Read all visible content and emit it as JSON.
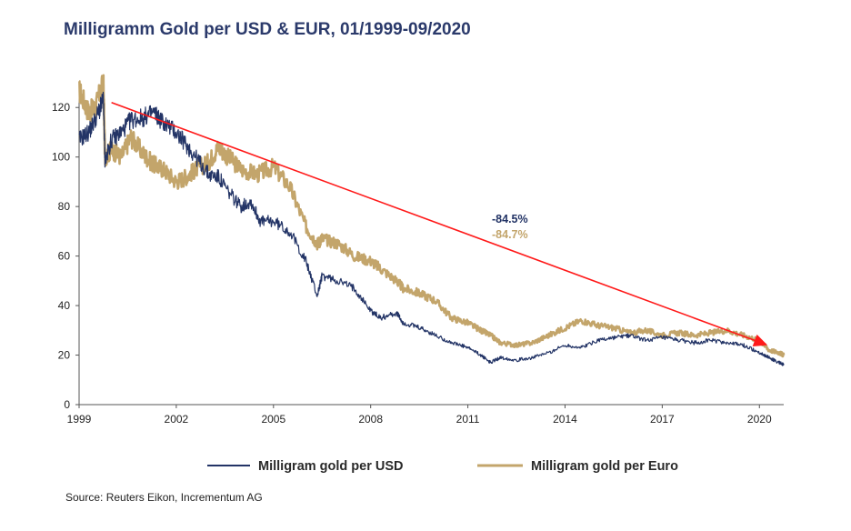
{
  "title": "Milligramm Gold per USD & EUR, 01/1999-09/2020",
  "source": "Source: Reuters Eikon, Incrementum AG",
  "colors": {
    "usd": "#233466",
    "eur": "#c3a56b",
    "trend": "#ff1a1a",
    "axis": "#555555"
  },
  "chart_data": {
    "type": "line",
    "title": "Milligramm Gold per USD & EUR, 01/1999-09/2020",
    "xlabel": "",
    "ylabel": "",
    "xlim": [
      1999.0,
      2020.75
    ],
    "ylim": [
      0,
      130
    ],
    "x_ticks": [
      "1999",
      "2002",
      "2005",
      "2008",
      "2011",
      "2014",
      "2017",
      "2020"
    ],
    "y_ticks": [
      "0",
      "20",
      "40",
      "60",
      "80",
      "100",
      "120"
    ],
    "grid": false,
    "legend": "bottom",
    "series": [
      {
        "name": "Milligram gold per USD",
        "color": "#233466",
        "x": [
          1999.0,
          1999.3,
          1999.6,
          1999.75,
          1999.8,
          2000.0,
          2000.3,
          2000.6,
          2001.0,
          2001.3,
          2001.6,
          2002.0,
          2002.3,
          2002.6,
          2003.0,
          2003.3,
          2003.6,
          2004.0,
          2004.3,
          2004.6,
          2005.0,
          2005.5,
          2006.0,
          2006.35,
          2006.5,
          2007.0,
          2007.5,
          2008.0,
          2008.3,
          2008.8,
          2009.0,
          2009.5,
          2010.0,
          2010.5,
          2011.0,
          2011.4,
          2011.7,
          2012.0,
          2012.5,
          2013.0,
          2013.5,
          2014.0,
          2014.5,
          2015.0,
          2015.5,
          2016.0,
          2016.5,
          2017.0,
          2017.5,
          2018.0,
          2018.5,
          2019.0,
          2019.5,
          2020.0,
          2020.3,
          2020.6,
          2020.75
        ],
        "y": [
          107,
          110,
          118,
          123,
          98,
          107,
          110,
          115,
          116,
          118,
          114,
          110,
          105,
          100,
          93,
          92,
          86,
          80,
          82,
          74,
          74,
          70,
          58,
          44,
          52,
          50,
          47,
          38,
          35,
          37,
          33,
          31,
          28,
          25,
          23,
          20,
          17,
          19,
          18,
          19,
          21,
          24,
          23,
          26,
          27,
          28,
          26,
          27,
          26,
          25,
          26,
          25,
          24,
          21,
          19,
          17,
          16
        ]
      },
      {
        "name": "Milligram gold per Euro",
        "color": "#c3a56b",
        "x": [
          1999.0,
          1999.3,
          1999.5,
          1999.75,
          1999.8,
          2000.0,
          2000.3,
          2000.6,
          2001.0,
          2001.3,
          2001.6,
          2002.0,
          2002.3,
          2002.6,
          2003.0,
          2003.3,
          2003.6,
          2004.0,
          2004.5,
          2005.0,
          2005.5,
          2006.0,
          2006.35,
          2006.5,
          2007.0,
          2007.5,
          2008.0,
          2008.3,
          2008.8,
          2009.0,
          2009.5,
          2010.0,
          2010.5,
          2011.0,
          2011.4,
          2011.7,
          2012.0,
          2012.5,
          2013.0,
          2013.5,
          2014.0,
          2014.5,
          2015.0,
          2015.5,
          2016.0,
          2016.5,
          2017.0,
          2017.5,
          2018.0,
          2018.5,
          2019.0,
          2019.5,
          2020.0,
          2020.3,
          2020.6,
          2020.75
        ],
        "y": [
          127,
          118,
          120,
          130,
          100,
          103,
          100,
          108,
          101,
          97,
          95,
          90,
          92,
          95,
          98,
          104,
          100,
          95,
          93,
          96,
          88,
          72,
          65,
          67,
          65,
          60,
          58,
          55,
          50,
          47,
          45,
          42,
          35,
          33,
          30,
          28,
          25,
          24,
          25,
          28,
          31,
          34,
          32,
          31,
          29,
          30,
          28,
          29,
          28,
          29,
          30,
          28,
          26,
          22,
          21,
          20
        ]
      },
      {
        "name": "",
        "color": "#ff1a1a",
        "x": [
          2000.0,
          2020.25
        ],
        "y": [
          122,
          24
        ]
      }
    ],
    "annotations": [
      {
        "text": "-84.5%",
        "color": "#233466"
      },
      {
        "text": "-84.7%",
        "color": "#c3a56b"
      }
    ]
  }
}
